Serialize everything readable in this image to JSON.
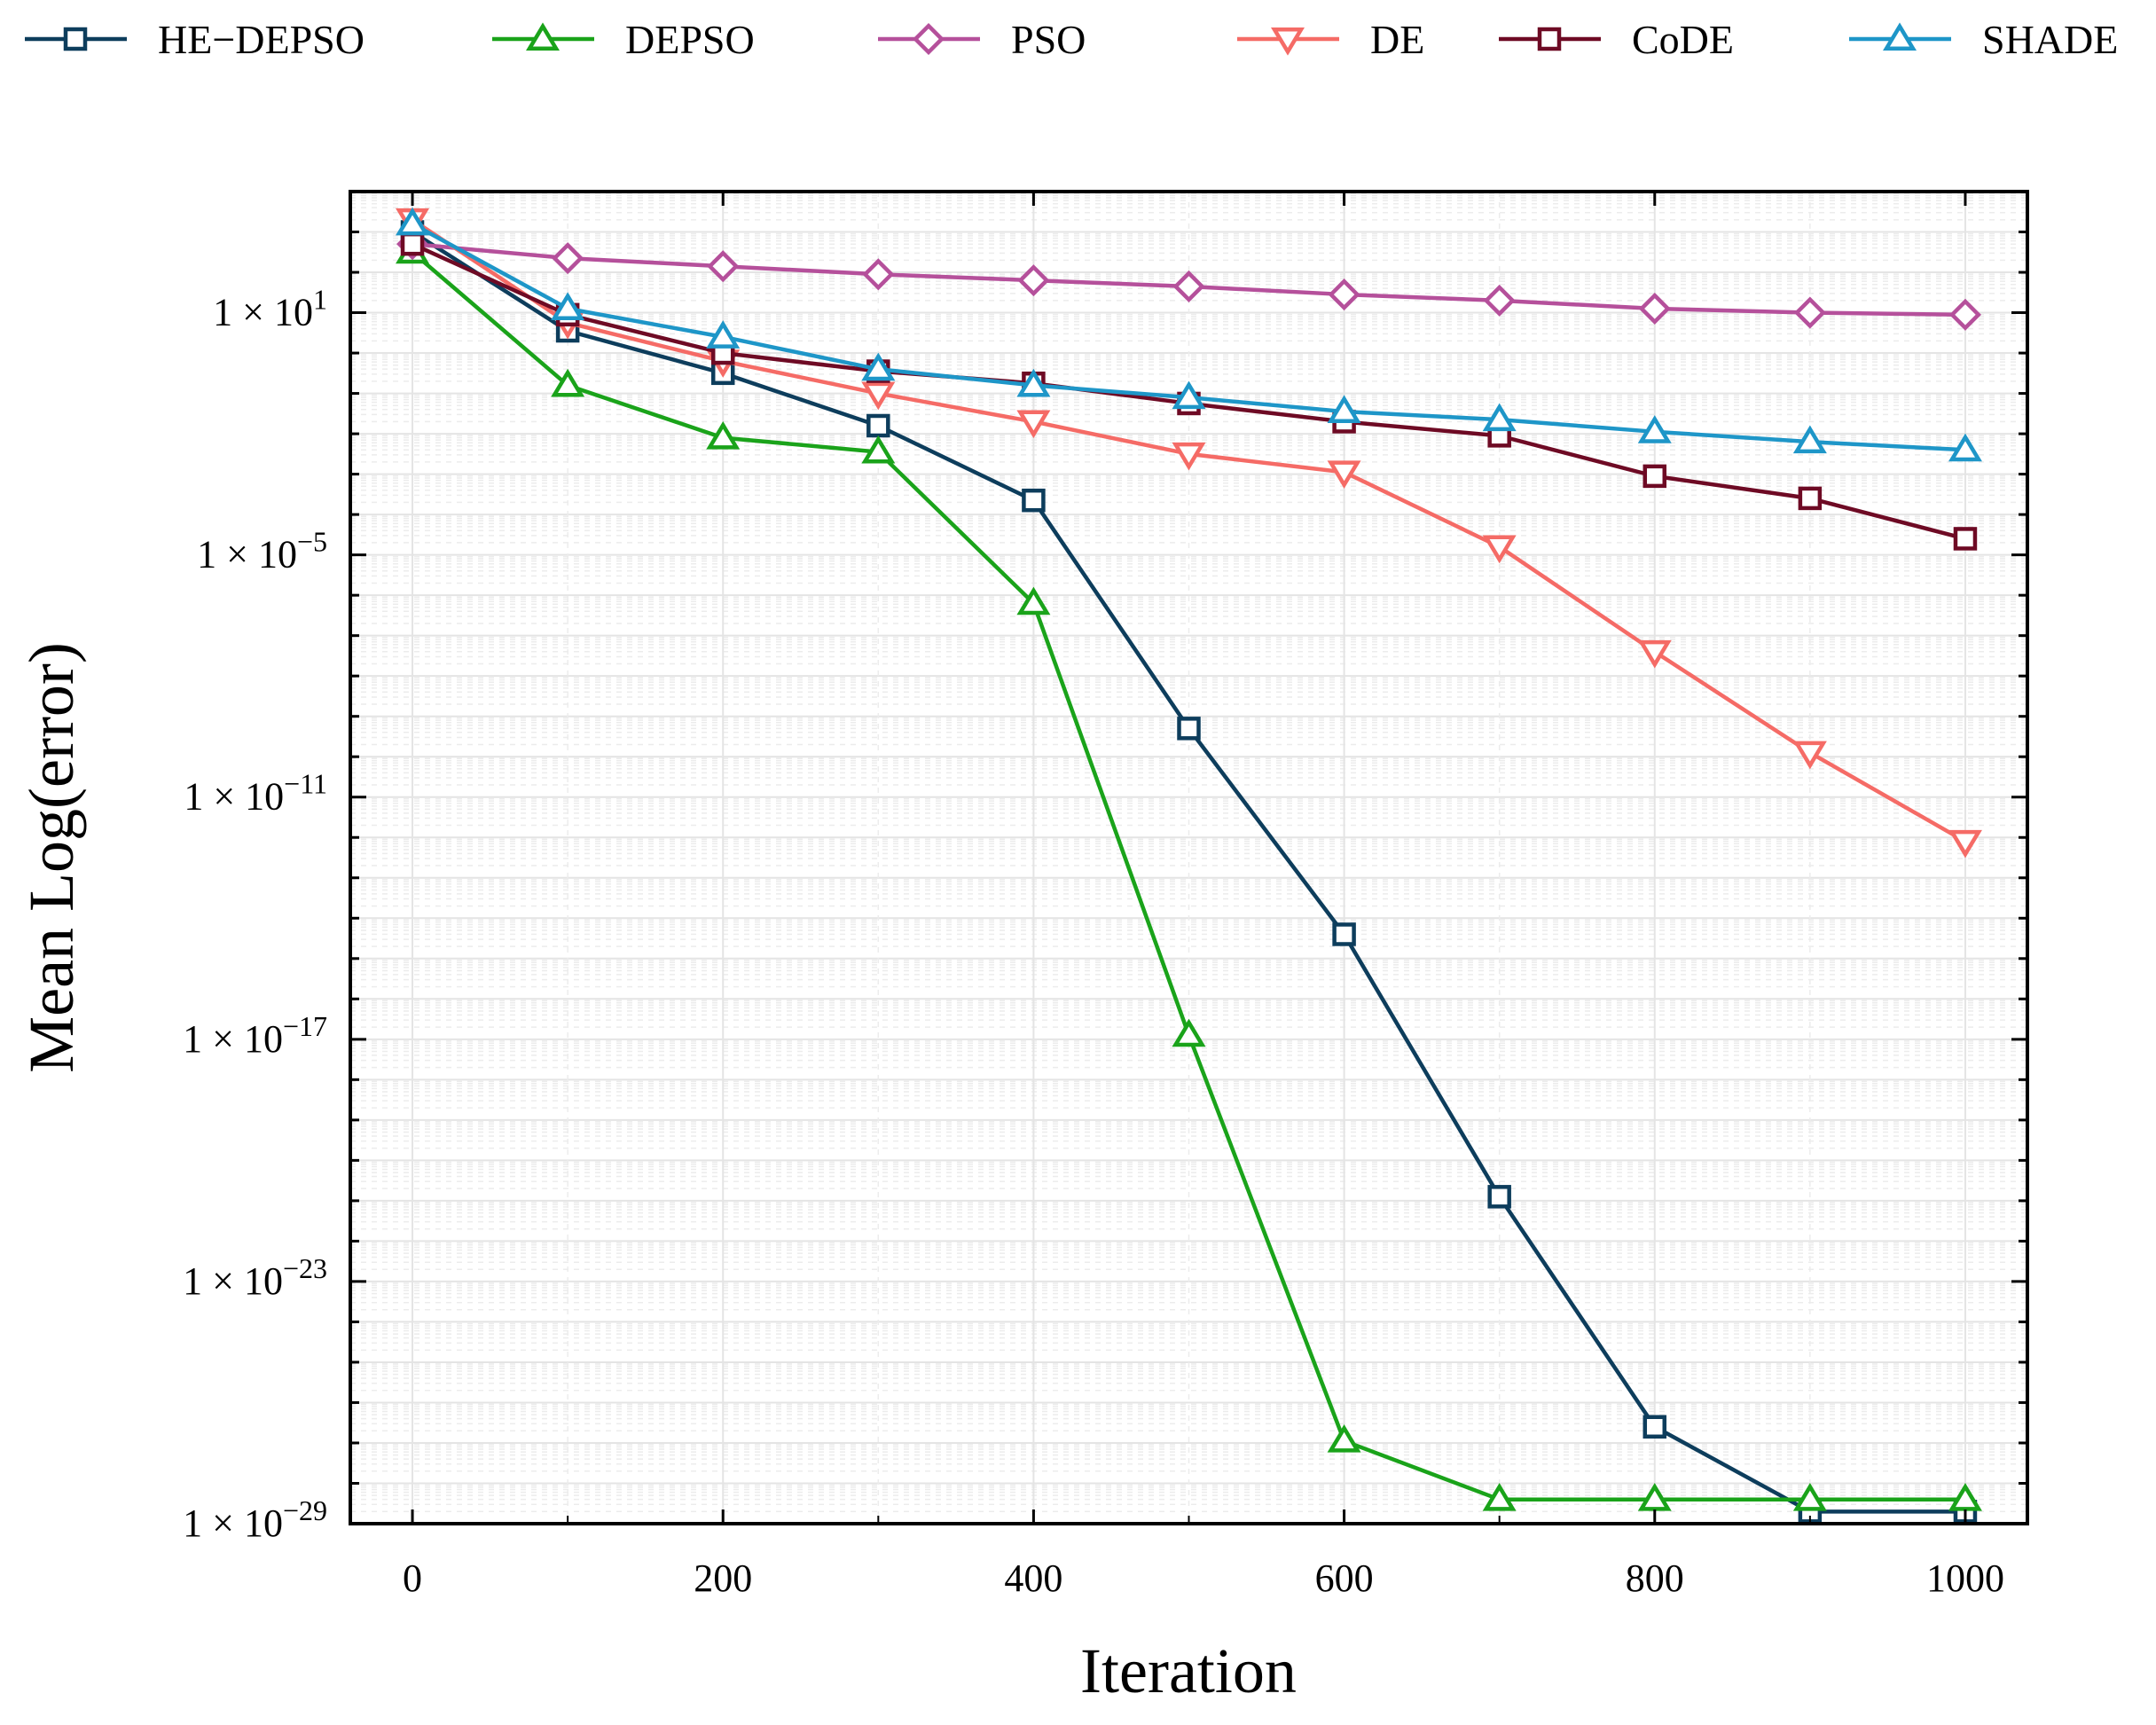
{
  "chart_data": {
    "type": "line",
    "xlabel": "Iteration",
    "ylabel": "Mean Log(error)",
    "x": [
      0,
      100,
      200,
      300,
      400,
      500,
      600,
      700,
      800,
      900,
      1000
    ],
    "xlim": [
      -40,
      1040
    ],
    "xticks": [
      0,
      200,
      400,
      600,
      800,
      1000
    ],
    "xtick_labels": [
      "0",
      "200",
      "400",
      "600",
      "800",
      "1000"
    ],
    "yscale": "log",
    "ylim_exp": [
      -29,
      4
    ],
    "ytick_exps": [
      1,
      -5,
      -11,
      -17,
      -23,
      -29
    ],
    "ytick_labels": [
      {
        "base": "1 × 10",
        "exp": "1"
      },
      {
        "base": "1 × 10",
        "exp": "−5"
      },
      {
        "base": "1 × 10",
        "exp": "−11"
      },
      {
        "base": "1 × 10",
        "exp": "−17"
      },
      {
        "base": "1 × 10",
        "exp": "−23"
      },
      {
        "base": "1 × 10",
        "exp": "−29"
      }
    ],
    "grid": true,
    "legend_position": "top",
    "series": [
      {
        "name": "HE−DEPSO",
        "color": "#0d3d5c",
        "marker": "square",
        "log10_values": [
          3.0,
          0.55,
          -0.5,
          -1.8,
          -3.65,
          -9.3,
          -14.4,
          -20.9,
          -26.6,
          -28.7,
          -28.7
        ]
      },
      {
        "name": "DEPSO",
        "color": "#1aa31a",
        "marker": "triangle-up",
        "log10_values": [
          2.5,
          -0.8,
          -2.1,
          -2.45,
          -6.2,
          -16.9,
          -26.95,
          -28.4,
          -28.4,
          -28.4,
          -28.4
        ]
      },
      {
        "name": "PSO",
        "color": "#b5509b",
        "marker": "diamond",
        "log10_values": [
          2.7,
          2.35,
          2.15,
          1.95,
          1.8,
          1.65,
          1.45,
          1.3,
          1.1,
          1.0,
          0.95
        ]
      },
      {
        "name": "DE",
        "color": "#f56b66",
        "marker": "triangle-down",
        "log10_values": [
          3.3,
          0.75,
          -0.2,
          -1.0,
          -1.7,
          -2.5,
          -2.95,
          -4.8,
          -7.4,
          -9.9,
          -12.1
        ]
      },
      {
        "name": "CoDE",
        "color": "#6e0a24",
        "marker": "square",
        "log10_values": [
          2.7,
          0.95,
          0.0,
          -0.45,
          -0.75,
          -1.25,
          -1.7,
          -2.05,
          -3.05,
          -3.6,
          -4.6
        ]
      },
      {
        "name": "SHADE",
        "color": "#1e96c8",
        "marker": "triangle-up",
        "log10_values": [
          3.2,
          1.1,
          0.4,
          -0.4,
          -0.8,
          -1.1,
          -1.45,
          -1.65,
          -1.95,
          -2.2,
          -2.4
        ]
      }
    ]
  }
}
